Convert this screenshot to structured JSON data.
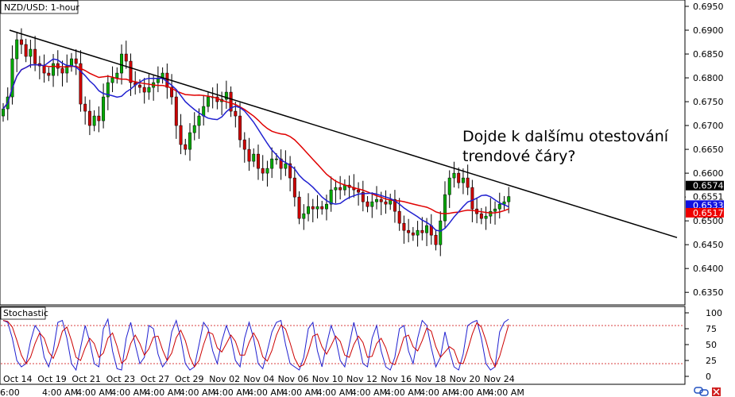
{
  "chart_data": [
    {
      "type": "line",
      "title": "NZD/USD: 1-hour",
      "subtype": "candlestick",
      "y_ticks": [
        "0.6950",
        "0.6900",
        "0.6850",
        "0.6800",
        "0.6750",
        "0.6700",
        "0.6650",
        "0.6600",
        "0.6550",
        "0.6500",
        "0.6450",
        "0.6400",
        "0.6350"
      ],
      "ylim": [
        0.6327,
        0.696
      ],
      "x_ticks": [
        "Oct 14",
        "Oct 19",
        "Oct 21",
        "Oct 23",
        "Oct 27",
        "Oct 29",
        "Nov 02",
        "Nov 04",
        "Nov 06",
        "Nov 10",
        "Nov 12",
        "Nov 16",
        "Nov 18",
        "Nov 20",
        "Nov 24"
      ],
      "x_sub_ticks": [
        "6:00",
        "4:00 AM",
        "4:00 AM",
        "4:00 AM",
        "4:00 AM",
        "4:00 AM",
        "4:00 AM",
        "4:00 AM",
        "4:00 AM",
        "4:00 AM",
        "4:00 AM",
        "4:00 AM",
        "4:00 AM",
        "4:00 AM",
        "4:00 AM"
      ],
      "annotation": {
        "line1": "Dojde k dalšímu otestování",
        "line2": "trendové čáry?"
      },
      "trendline": {
        "x": [
          0,
          146
        ],
        "y": [
          0.69,
          0.6465
        ],
        "color": "#000000"
      },
      "price_labels": [
        {
          "text": "0.6574",
          "value": 0.6574,
          "bg": "#000000",
          "fg": "#ffffff"
        },
        {
          "text": "0.6551",
          "value": 0.6551,
          "bg": "#ffffff",
          "fg": "#000000"
        },
        {
          "text": "0.6533",
          "value": 0.6533,
          "bg": "#1010e0",
          "fg": "#ffffff"
        },
        {
          "text": "0.6517",
          "value": 0.6517,
          "bg": "#ee0000",
          "fg": "#ffffff"
        }
      ],
      "colors": {
        "up": "#00aa00",
        "down": "#cc0000",
        "ma_fast": "#2020d0",
        "ma_slow": "#e00000"
      },
      "series": [
        {
          "name": "",
          "key": "close",
          "values": [
            0.6735,
            0.676,
            0.684,
            0.688,
            0.687,
            0.6845,
            0.686,
            0.683,
            0.6825,
            0.681,
            0.6805,
            0.683,
            0.682,
            0.681,
            0.6825,
            0.684,
            0.683,
            0.6745,
            0.673,
            0.67,
            0.672,
            0.671,
            0.676,
            0.679,
            0.68,
            0.681,
            0.685,
            0.6835,
            0.679,
            0.6785,
            0.678,
            0.677,
            0.678,
            0.679,
            0.68,
            0.681,
            0.678,
            0.676,
            0.67,
            0.666,
            0.665,
            0.6685,
            0.67,
            0.672,
            0.674,
            0.676,
            0.676,
            0.675,
            0.6755,
            0.677,
            0.673,
            0.672,
            0.667,
            0.665,
            0.6625,
            0.664,
            0.661,
            0.66,
            0.661,
            0.663,
            0.663,
            0.661,
            0.662,
            0.659,
            0.655,
            0.6505,
            0.6515,
            0.653,
            0.6525,
            0.653,
            0.6525,
            0.6535,
            0.6565,
            0.657,
            0.6565,
            0.6575,
            0.657,
            0.6565,
            0.656,
            0.654,
            0.653,
            0.654,
            0.6545,
            0.654,
            0.6535,
            0.6545,
            0.652,
            0.6495,
            0.648,
            0.6475,
            0.647,
            0.648,
            0.6475,
            0.649,
            0.647,
            0.645,
            0.65,
            0.6555,
            0.659,
            0.66,
            0.658,
            0.659,
            0.657,
            0.6525,
            0.6515,
            0.6505,
            0.651,
            0.652,
            0.6525,
            0.6535,
            0.654,
            0.6551
          ]
        },
        {
          "name": "",
          "key": "stochastic",
          "values": [
            88,
            85,
            60,
            25,
            15,
            20,
            55,
            80,
            70,
            30,
            15,
            40,
            85,
            88,
            60,
            20,
            10,
            45,
            80,
            55,
            20,
            15,
            75,
            90,
            40,
            12,
            10,
            60,
            85,
            50,
            20,
            30,
            80,
            75,
            35,
            15,
            25,
            70,
            88,
            60,
            20,
            10,
            15,
            50,
            85,
            75,
            40,
            20,
            55,
            80,
            60,
            25,
            15,
            60,
            85,
            60,
            20,
            12,
            40,
            70,
            85,
            88,
            50,
            20,
            15,
            10,
            30,
            75,
            85,
            40,
            15,
            50,
            80,
            60,
            25,
            15,
            50,
            85,
            55,
            20,
            15,
            60,
            80,
            40,
            15,
            10,
            30,
            75,
            80,
            40,
            20,
            60,
            88,
            80,
            45,
            15,
            30,
            70,
            40,
            15,
            10,
            35,
            80,
            85,
            88,
            60,
            20,
            10,
            15,
            70,
            85,
            90
          ]
        }
      ]
    },
    {
      "type": "line",
      "title": "Stochastic",
      "y_ticks": [
        "100",
        "75",
        "50",
        "25",
        "0"
      ],
      "ylim": [
        0,
        100
      ],
      "levels": [
        80,
        20
      ]
    }
  ]
}
